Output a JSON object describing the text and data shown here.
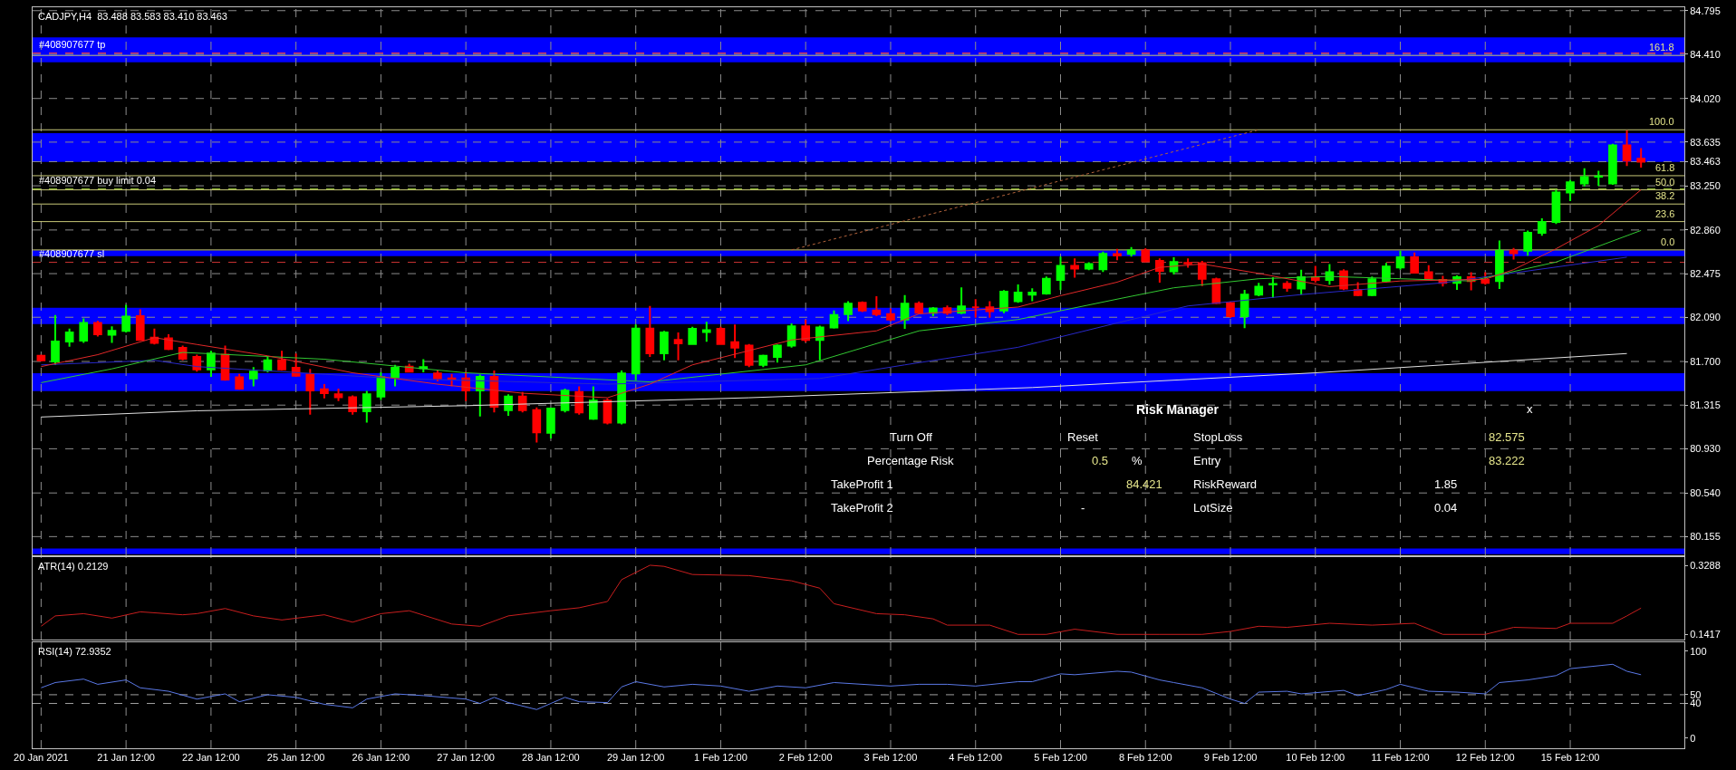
{
  "chart_data": [
    {
      "type": "candlestick",
      "title": "CADJPY,H4  83.488 83.583 83.410 83.463",
      "categories": [
        null,
        null,
        null,
        null,
        null,
        null,
        null,
        null,
        null,
        null,
        null,
        null,
        null,
        null,
        null,
        null,
        null,
        null,
        null,
        null,
        null,
        null,
        null,
        null,
        null,
        null,
        null,
        null,
        null,
        null,
        null,
        null,
        null,
        null,
        null,
        null,
        null,
        null,
        null,
        null,
        null,
        null,
        null,
        null,
        null,
        null,
        null,
        null,
        null,
        null,
        null,
        null,
        null,
        null,
        null,
        null,
        null,
        null,
        null,
        null,
        null,
        null,
        null,
        null,
        null,
        null,
        null,
        null,
        null,
        null,
        null,
        null,
        null,
        null,
        null,
        null,
        null,
        null,
        null,
        null,
        null,
        null,
        null,
        null,
        null,
        null,
        null,
        null,
        null,
        null,
        null,
        null,
        null,
        null,
        null,
        null,
        null,
        null,
        null,
        null,
        null,
        null,
        null,
        null,
        null,
        null,
        null,
        null,
        null,
        null,
        null,
        null,
        null,
        null
      ],
      "ohlc": [
        [
          81.75,
          81.76,
          81.7,
          81.71
        ],
        [
          81.7,
          82.11,
          81.67,
          81.876
        ],
        [
          81.876,
          81.99,
          81.83,
          81.955
        ],
        [
          81.885,
          82.08,
          81.865,
          82.04
        ],
        [
          82.04,
          82.06,
          81.92,
          81.94
        ],
        [
          81.935,
          82.01,
          81.865,
          81.97
        ],
        [
          81.97,
          82.2,
          81.955,
          82.095
        ],
        [
          82.1,
          82.16,
          81.885,
          81.89
        ],
        [
          81.91,
          81.99,
          81.85,
          81.865
        ],
        [
          81.905,
          81.94,
          81.8,
          81.81
        ],
        [
          81.82,
          81.84,
          81.71,
          81.725
        ],
        [
          81.74,
          81.76,
          81.61,
          81.63
        ],
        [
          81.63,
          81.795,
          81.565,
          81.77
        ],
        [
          81.76,
          81.84,
          81.53,
          81.54
        ],
        [
          81.56,
          81.59,
          81.45,
          81.46
        ],
        [
          81.55,
          81.65,
          81.48,
          81.61
        ],
        [
          81.62,
          81.74,
          81.605,
          81.71
        ],
        [
          81.71,
          81.795,
          81.62,
          81.63
        ],
        [
          81.645,
          81.77,
          81.565,
          81.575
        ],
        [
          81.585,
          81.635,
          81.23,
          81.445
        ],
        [
          81.455,
          81.5,
          81.375,
          81.42
        ],
        [
          81.41,
          81.46,
          81.35,
          81.385
        ],
        [
          81.385,
          81.4,
          81.23,
          81.26
        ],
        [
          81.26,
          81.44,
          81.16,
          81.41
        ],
        [
          81.39,
          81.605,
          81.36,
          81.56
        ],
        [
          81.56,
          81.67,
          81.48,
          81.645
        ],
        [
          81.655,
          81.68,
          81.605,
          81.61
        ],
        [
          81.64,
          81.72,
          81.605,
          81.65
        ],
        [
          81.595,
          81.62,
          81.525,
          81.55
        ],
        [
          81.55,
          81.59,
          81.48,
          81.545
        ],
        [
          81.55,
          81.61,
          81.35,
          81.445
        ],
        [
          81.445,
          81.585,
          81.215,
          81.565
        ],
        [
          81.565,
          81.62,
          81.25,
          81.3
        ],
        [
          81.27,
          81.41,
          81.22,
          81.39
        ],
        [
          81.39,
          81.43,
          81.25,
          81.27
        ],
        [
          81.27,
          81.295,
          80.985,
          81.075
        ],
        [
          81.07,
          81.29,
          81.02,
          81.285
        ],
        [
          81.27,
          81.46,
          81.25,
          81.443
        ],
        [
          81.43,
          81.48,
          81.23,
          81.25
        ],
        [
          81.195,
          81.48,
          81.185,
          81.355
        ],
        [
          81.355,
          81.375,
          81.145,
          81.16
        ],
        [
          81.16,
          81.62,
          81.145,
          81.595
        ],
        [
          81.595,
          82.025,
          81.535,
          81.99
        ],
        [
          81.99,
          82.19,
          81.74,
          81.773
        ],
        [
          81.773,
          81.97,
          81.71,
          81.955
        ],
        [
          81.89,
          81.955,
          81.71,
          81.86
        ],
        [
          81.855,
          82.005,
          81.85,
          81.987
        ],
        [
          81.96,
          82.05,
          81.875,
          81.975
        ],
        [
          81.987,
          82.005,
          81.85,
          81.855
        ],
        [
          81.87,
          82.025,
          81.73,
          81.823
        ],
        [
          81.84,
          81.855,
          81.65,
          81.67
        ],
        [
          81.67,
          81.76,
          81.65,
          81.75
        ],
        [
          81.74,
          81.85,
          81.69,
          81.84
        ],
        [
          81.84,
          82.035,
          81.823,
          82.01
        ],
        [
          82.01,
          82.07,
          81.87,
          81.89
        ],
        [
          81.89,
          82.015,
          81.71,
          82.0
        ],
        [
          82.0,
          82.15,
          81.99,
          82.11
        ],
        [
          82.117,
          82.232,
          82.055,
          82.21
        ],
        [
          82.217,
          82.23,
          82.135,
          82.15
        ],
        [
          82.15,
          82.275,
          82.1,
          82.118
        ],
        [
          82.118,
          82.167,
          82.055,
          82.07
        ],
        [
          82.07,
          82.285,
          81.987,
          82.21
        ],
        [
          82.21,
          82.23,
          82.12,
          82.13
        ],
        [
          82.13,
          82.18,
          82.1,
          82.167
        ],
        [
          82.17,
          82.193,
          82.11,
          82.13
        ],
        [
          82.13,
          82.354,
          82.118,
          82.185
        ],
        [
          82.177,
          82.25,
          82.086,
          82.177
        ],
        [
          82.177,
          82.232,
          82.086,
          82.143
        ],
        [
          82.15,
          82.33,
          82.125,
          82.315
        ],
        [
          82.232,
          82.38,
          82.217,
          82.307
        ],
        [
          82.29,
          82.346,
          82.232,
          82.307
        ],
        [
          82.3,
          82.45,
          82.29,
          82.43
        ],
        [
          82.42,
          82.625,
          82.33,
          82.544
        ],
        [
          82.544,
          82.61,
          82.44,
          82.52
        ],
        [
          82.52,
          82.575,
          82.505,
          82.56
        ],
        [
          82.513,
          82.67,
          82.49,
          82.65
        ],
        [
          82.648,
          82.694,
          82.593,
          82.636
        ],
        [
          82.65,
          82.71,
          82.625,
          82.68
        ],
        [
          82.68,
          82.7,
          82.575,
          82.587
        ],
        [
          82.587,
          82.61,
          82.395,
          82.5
        ],
        [
          82.495,
          82.62,
          82.467,
          82.577
        ],
        [
          82.57,
          82.61,
          82.527,
          82.565
        ],
        [
          82.567,
          82.587,
          82.365,
          82.43
        ],
        [
          82.425,
          82.44,
          82.205,
          82.215
        ],
        [
          82.215,
          82.228,
          82.086,
          82.1
        ],
        [
          82.1,
          82.332,
          81.994,
          82.29
        ],
        [
          82.29,
          82.394,
          82.275,
          82.36
        ],
        [
          82.38,
          82.443,
          82.26,
          82.384
        ],
        [
          82.386,
          82.41,
          82.316,
          82.35
        ],
        [
          82.343,
          82.51,
          82.29,
          82.443
        ],
        [
          82.443,
          82.544,
          82.395,
          82.42
        ],
        [
          82.42,
          82.56,
          82.377,
          82.487
        ],
        [
          82.495,
          82.513,
          82.33,
          82.343
        ],
        [
          82.332,
          82.4,
          82.275,
          82.285
        ],
        [
          82.285,
          82.45,
          82.275,
          82.426
        ],
        [
          82.41,
          82.57,
          82.395,
          82.537
        ],
        [
          82.53,
          82.678,
          82.51,
          82.62
        ],
        [
          82.62,
          82.662,
          82.477,
          82.483
        ],
        [
          82.487,
          82.55,
          82.418,
          82.43
        ],
        [
          82.42,
          82.455,
          82.362,
          82.394
        ],
        [
          82.394,
          82.46,
          82.332,
          82.443
        ],
        [
          82.443,
          82.487,
          82.327,
          82.41
        ],
        [
          82.42,
          82.487,
          82.377,
          82.394
        ],
        [
          82.41,
          82.768,
          82.34,
          82.678
        ],
        [
          82.678,
          82.702,
          82.6,
          82.655
        ],
        [
          82.678,
          82.856,
          82.634,
          82.836
        ],
        [
          82.836,
          82.962,
          82.81,
          82.93
        ],
        [
          82.93,
          83.215,
          82.912,
          83.19
        ],
        [
          83.19,
          83.3,
          83.114,
          83.28
        ],
        [
          83.271,
          83.405,
          83.245,
          83.327
        ],
        [
          83.33,
          83.383,
          83.248,
          83.332
        ],
        [
          83.271,
          83.62,
          83.258,
          83.606
        ],
        [
          83.606,
          83.741,
          83.425,
          83.472
        ],
        [
          83.488,
          83.583,
          83.41,
          83.463
        ]
      ],
      "colors": [
        "#ff0000",
        "#00ff00",
        "#00ff00",
        "#00ff00",
        "#ff0000",
        "#00ff00",
        "#00ff00",
        "#ff0000",
        "#ff0000",
        "#ff0000",
        "#ff0000",
        "#ff0000",
        "#00ff00",
        "#ff0000",
        "#ff0000",
        "#00ff00",
        "#00ff00",
        "#ff0000",
        "#ff0000",
        "#ff0000",
        "#ff0000",
        "#ff0000",
        "#ff0000",
        "#00ff00",
        "#00ff00",
        "#00ff00",
        "#ff0000",
        "#00ff00",
        "#ff0000",
        "#ff0000",
        "#ff0000",
        "#00ff00",
        "#ff0000",
        "#00ff00",
        "#ff0000",
        "#ff0000",
        "#00ff00",
        "#00ff00",
        "#ff0000",
        "#00ff00",
        "#ff0000",
        "#00ff00",
        "#00ff00",
        "#ff0000",
        "#00ff00",
        "#ff0000",
        "#00ff00",
        "#00ff00",
        "#ff0000",
        "#ff0000",
        "#ff0000",
        "#00ff00",
        "#00ff00",
        "#00ff00",
        "#ff0000",
        "#00ff00",
        "#00ff00",
        "#00ff00",
        "#ff0000",
        "#ff0000",
        "#ff0000",
        "#00ff00",
        "#ff0000",
        "#00ff00",
        "#ff0000",
        "#00ff00",
        "#ff0000",
        "#ff0000",
        "#00ff00",
        "#00ff00",
        "#00ff00",
        "#00ff00",
        "#00ff00",
        "#ff0000",
        "#00ff00",
        "#00ff00",
        "#ff0000",
        "#00ff00",
        "#ff0000",
        "#ff0000",
        "#00ff00",
        "#ff0000",
        "#ff0000",
        "#ff0000",
        "#ff0000",
        "#00ff00",
        "#00ff00",
        "#00ff00",
        "#ff0000",
        "#00ff00",
        "#ff0000",
        "#00ff00",
        "#ff0000",
        "#ff0000",
        "#00ff00",
        "#00ff00",
        "#00ff00",
        "#ff0000",
        "#ff0000",
        "#ff0000",
        "#00ff00",
        "#ff0000",
        "#ff0000",
        "#00ff00",
        "#ff0000",
        "#00ff00",
        "#00ff00",
        "#00ff00",
        "#00ff00",
        "#00ff00",
        "#00ff00",
        "#00ff00",
        "#ff0000",
        "#ff0000"
      ],
      "series": [
        {
          "type": "line",
          "color": "#e0e0e0",
          "values": [
            81.21,
            null,
            null,
            null,
            null,
            null,
            null,
            null,
            null,
            null,
            null,
            81.265,
            null,
            null,
            null,
            null,
            null,
            null,
            null,
            null,
            null,
            null,
            null,
            null,
            null,
            null,
            null,
            null,
            null,
            null,
            81.31,
            null,
            null,
            null,
            null,
            null,
            null,
            null,
            null,
            null,
            null,
            null,
            null,
            null,
            null,
            null,
            null,
            null,
            null,
            null,
            81.38,
            null,
            null,
            null,
            null,
            null,
            null,
            null,
            null,
            null,
            null,
            null,
            null,
            null,
            null,
            null,
            null,
            null,
            null,
            null,
            81.47,
            null,
            null,
            null,
            null,
            null,
            null,
            null,
            null,
            null,
            null,
            null,
            null,
            null,
            null,
            null,
            null,
            null,
            null,
            null,
            81.6,
            null,
            null,
            null,
            null,
            null,
            null,
            null,
            null,
            null,
            null,
            null,
            null,
            null,
            null,
            null,
            null,
            null,
            null,
            null,
            null,
            null,
            81.77,
            null
          ]
        },
        {
          "type": "line",
          "color": "#2828c8",
          "values": [
            81.67,
            null,
            null,
            null,
            null,
            null,
            null,
            null,
            81.71,
            null,
            null,
            81.655,
            null,
            null,
            null,
            null,
            null,
            null,
            null,
            null,
            null,
            null,
            null,
            null,
            null,
            81.55,
            null,
            null,
            null,
            null,
            null,
            null,
            null,
            null,
            null,
            null,
            null,
            null,
            null,
            null,
            81.5,
            null,
            null,
            null,
            null,
            null,
            null,
            null,
            null,
            null,
            null,
            null,
            null,
            null,
            null,
            81.55,
            null,
            null,
            null,
            null,
            null,
            81.67,
            null,
            null,
            null,
            null,
            null,
            null,
            null,
            81.825,
            null,
            null,
            null,
            null,
            null,
            null,
            82.04,
            null,
            null,
            null,
            null,
            82.19,
            null,
            null,
            null,
            null,
            null,
            null,
            null,
            82.29,
            null,
            null,
            null,
            null,
            null,
            null,
            null,
            null,
            null,
            82.394,
            null,
            null,
            null,
            null,
            null,
            null,
            null,
            null,
            null,
            null,
            null,
            null,
            82.62,
            null
          ]
        },
        {
          "type": "line",
          "color": "#32c832",
          "values": [
            81.513,
            null,
            null,
            null,
            null,
            81.635,
            null,
            null,
            null,
            null,
            81.78,
            null,
            null,
            null,
            null,
            null,
            null,
            null,
            null,
            null,
            81.72,
            null,
            null,
            null,
            null,
            null,
            null,
            null,
            null,
            null,
            81.6,
            null,
            null,
            null,
            null,
            null,
            null,
            null,
            null,
            null,
            null,
            null,
            null,
            81.52,
            null,
            null,
            null,
            null,
            null,
            null,
            null,
            null,
            null,
            null,
            81.67,
            null,
            null,
            null,
            null,
            null,
            null,
            null,
            81.97,
            null,
            null,
            null,
            null,
            null,
            null,
            82.07,
            null,
            null,
            null,
            null,
            null,
            null,
            82.25,
            null,
            null,
            null,
            82.35,
            null,
            null,
            null,
            null,
            null,
            82.43,
            null,
            null,
            null,
            null,
            82.45,
            null,
            null,
            null,
            null,
            null,
            null,
            null,
            null,
            null,
            82.41,
            null,
            null,
            null,
            null,
            null,
            82.577,
            null,
            null,
            null,
            null,
            null,
            82.856
          ]
        },
        {
          "type": "line",
          "color": "#e02828",
          "values": [
            81.655,
            null,
            null,
            null,
            81.76,
            null,
            null,
            null,
            81.91,
            null,
            null,
            81.85,
            null,
            null,
            null,
            null,
            81.75,
            null,
            null,
            null,
            null,
            null,
            81.6,
            null,
            null,
            null,
            null,
            null,
            81.5,
            null,
            null,
            null,
            null,
            null,
            81.42,
            null,
            null,
            null,
            null,
            null,
            81.38,
            null,
            null,
            81.5,
            null,
            null,
            81.67,
            null,
            null,
            null,
            null,
            null,
            null,
            81.89,
            null,
            null,
            null,
            null,
            null,
            81.97,
            null,
            null,
            82.12,
            null,
            null,
            null,
            null,
            null,
            null,
            82.18,
            null,
            null,
            82.28,
            null,
            null,
            null,
            82.4,
            null,
            null,
            82.53,
            null,
            null,
            82.56,
            null,
            null,
            null,
            82.477,
            null,
            null,
            null,
            null,
            82.36,
            null,
            null,
            null,
            null,
            82.41,
            null,
            null,
            null,
            null,
            null,
            82.425,
            null,
            82.51,
            null,
            null,
            82.694,
            null,
            null,
            82.9,
            null,
            null,
            83.215
          ]
        },
        {
          "type": "line",
          "color": "#b4643c",
          "line_style": "dotted",
          "values": [
            null,
            null,
            null,
            null,
            null,
            null,
            null,
            null,
            null,
            null,
            null,
            null,
            null,
            null,
            null,
            null,
            null,
            null,
            null,
            null,
            null,
            null,
            null,
            null,
            null,
            null,
            null,
            null,
            null,
            null,
            null,
            null,
            null,
            null,
            null,
            null,
            null,
            null,
            null,
            null,
            null,
            null,
            null,
            null,
            null,
            null,
            null,
            null,
            null,
            null,
            null,
            null,
            null,
            82.684,
            null,
            null,
            null,
            null,
            null,
            null,
            null,
            null,
            null,
            null,
            null,
            null,
            null,
            null,
            null,
            null,
            null,
            null,
            null,
            null,
            null,
            null,
            null,
            null,
            null,
            null,
            null,
            null,
            null,
            null,
            null,
            null,
            83.744,
            null,
            null,
            null,
            null,
            null,
            null,
            null,
            null,
            null,
            null,
            null,
            null,
            null,
            null,
            null,
            null,
            null,
            null,
            null,
            null,
            null,
            null,
            null,
            null,
            null,
            null,
            null
          ]
        }
      ],
      "bands": [
        {
          "axis": "y",
          "from": 84.34,
          "to": 84.56,
          "color": "#0000ff"
        },
        {
          "axis": "y",
          "from": 83.46,
          "to": 83.715,
          "color": "#0000ff"
        },
        {
          "axis": "y",
          "from": 82.63,
          "to": 82.68,
          "color": "#0000ff"
        },
        {
          "axis": "y",
          "from": 82.03,
          "to": 82.173,
          "color": "#0000ff"
        },
        {
          "axis": "y",
          "from": 81.438,
          "to": 81.597,
          "color": "#0000ff"
        },
        {
          "axis": "y",
          "from": 80.0,
          "to": 80.05,
          "color": "#0000ff"
        }
      ],
      "ref_lines": [
        {
          "axis": "y",
          "value": 84.421,
          "label": "#408907677 tp",
          "color": "#ff3c3c",
          "line_style": "dashed"
        },
        {
          "axis": "y",
          "value": 83.222,
          "label": "#408907677 buy limit 0.04",
          "color": "#9acd32",
          "line_style": "dashed"
        },
        {
          "axis": "y",
          "value": 82.575,
          "label": "#408907677 sl",
          "color": "#c83232",
          "line_style": "dashed"
        },
        {
          "axis": "y",
          "value": 84.4,
          "color": "#c8c878",
          "line_style": "solid"
        },
        {
          "axis": "y",
          "value": 83.744,
          "color": "#c8c878",
          "line_style": "solid"
        },
        {
          "axis": "y",
          "value": 83.339,
          "color": "#c8c878",
          "line_style": "solid"
        },
        {
          "axis": "y",
          "value": 83.214,
          "color": "#c8c878",
          "line_style": "solid"
        },
        {
          "axis": "y",
          "value": 83.089,
          "color": "#c8c878",
          "line_style": "solid"
        },
        {
          "axis": "y",
          "value": 82.934,
          "color": "#c8c878",
          "line_style": "solid"
        },
        {
          "axis": "y",
          "value": 82.684,
          "color": "#c8c878",
          "line_style": "solid"
        }
      ],
      "annotations": [
        {
          "text": "161.8",
          "y": 84.4
        },
        {
          "text": "100.0",
          "y": 83.744
        },
        {
          "text": "61.8",
          "y": 83.339
        },
        {
          "text": "50.0",
          "y": 83.214
        },
        {
          "text": "38.2",
          "y": 83.089
        },
        {
          "text": "23.6",
          "y": 82.934
        },
        {
          "text": "0.0",
          "y": 82.684
        }
      ],
      "ylim": [
        79.99,
        84.825
      ],
      "yticks": [
        {
          "value": 84.795,
          "label": "84.795"
        },
        {
          "value": 84.41,
          "label": "84.410"
        },
        {
          "value": 84.02,
          "label": "84.020"
        },
        {
          "value": 83.635,
          "label": "83.635"
        },
        {
          "value": 83.463,
          "label": "83.463"
        },
        {
          "value": 83.25,
          "label": "83.250"
        },
        {
          "value": 82.86,
          "label": "82.860"
        },
        {
          "value": 82.475,
          "label": "82.475"
        },
        {
          "value": 82.09,
          "label": "82.090"
        },
        {
          "value": 81.7,
          "label": "81.700"
        },
        {
          "value": 81.315,
          "label": "81.315"
        },
        {
          "value": 80.93,
          "label": "80.930"
        },
        {
          "value": 80.54,
          "label": "80.540"
        },
        {
          "value": 80.155,
          "label": "80.155"
        }
      ],
      "tick_labels": "y",
      "grid": true
    },
    {
      "type": "line",
      "title": "ATR(14) 0.2129",
      "color": "#c81e1e",
      "categories": [
        null,
        null,
        null,
        null,
        null,
        null,
        null,
        null,
        null,
        null,
        null,
        null,
        null,
        null,
        null,
        null,
        null,
        null,
        null,
        null,
        null,
        null,
        null,
        null,
        null,
        null,
        null,
        null,
        null,
        null,
        null,
        null,
        null,
        null,
        null,
        null,
        null,
        null,
        null,
        null,
        null,
        null,
        null,
        null,
        null,
        null,
        null,
        null,
        null,
        null,
        null,
        null,
        null,
        null,
        null,
        null,
        null,
        null,
        null,
        null,
        null,
        null,
        null,
        null,
        null,
        null,
        null,
        null,
        null,
        null,
        null,
        null,
        null,
        null,
        null,
        null,
        null,
        null,
        null,
        null,
        null,
        null,
        null,
        null,
        null,
        null,
        null,
        null,
        null,
        null,
        null,
        null,
        null,
        null,
        null,
        null,
        null,
        null,
        null,
        null,
        null,
        null,
        null,
        null,
        null,
        null,
        null,
        null,
        null,
        null,
        null,
        null,
        null,
        null
      ],
      "values": [
        0.164,
        0.192,
        null,
        0.198,
        null,
        0.186,
        null,
        0.203,
        null,
        null,
        0.195,
        0.198,
        null,
        0.212,
        null,
        0.192,
        null,
        0.181,
        null,
        null,
        0.195,
        null,
        0.175,
        null,
        0.198,
        null,
        0.206,
        null,
        null,
        0.17,
        null,
        0.164,
        null,
        0.192,
        null,
        null,
        0.206,
        null,
        0.214,
        null,
        0.231,
        0.29,
        null,
        0.329,
        0.326,
        null,
        0.304,
        null,
        null,
        null,
        0.301,
        null,
        null,
        0.287,
        null,
        0.267,
        0.225,
        null,
        null,
        0.198,
        null,
        0.195,
        null,
        0.184,
        0.167,
        null,
        null,
        0.167,
        null,
        0.142,
        null,
        0.142,
        null,
        0.156,
        null,
        null,
        0.142,
        null,
        null,
        0.142,
        null,
        null,
        0.142,
        null,
        0.15,
        null,
        0.164,
        null,
        0.161,
        null,
        null,
        0.172,
        null,
        null,
        0.167,
        null,
        null,
        0.172,
        null,
        0.142,
        null,
        null,
        0.142,
        null,
        0.161,
        null,
        null,
        0.158,
        0.172,
        null,
        null,
        0.172,
        0.192,
        0.213
      ],
      "ylim": [
        0.128,
        0.351
      ],
      "yticks": [
        0.3288,
        0.1417
      ],
      "tick_labels": "y",
      "grid": "x"
    },
    {
      "type": "line",
      "title": "RSI(14) 72.9352",
      "color": "#5a78e6",
      "categories": [
        "20 Jan 2021",
        null,
        null,
        null,
        null,
        null,
        "21 Jan 12:00",
        null,
        null,
        null,
        null,
        null,
        "22 Jan 12:00",
        null,
        null,
        null,
        null,
        null,
        "25 Jan 12:00",
        null,
        null,
        null,
        null,
        null,
        "26 Jan 12:00",
        null,
        null,
        null,
        null,
        null,
        "27 Jan 12:00",
        null,
        null,
        null,
        null,
        null,
        "28 Jan 12:00",
        null,
        null,
        null,
        null,
        null,
        "29 Jan 12:00",
        null,
        null,
        null,
        null,
        null,
        "1 Feb 12:00",
        null,
        null,
        null,
        null,
        null,
        "2 Feb 12:00",
        null,
        null,
        null,
        null,
        null,
        "3 Feb 12:00",
        null,
        null,
        null,
        null,
        null,
        "4 Feb 12:00",
        null,
        null,
        null,
        null,
        null,
        "5 Feb 12:00",
        null,
        null,
        null,
        null,
        null,
        "8 Feb 12:00",
        null,
        null,
        null,
        null,
        null,
        "9 Feb 12:00",
        null,
        null,
        null,
        null,
        null,
        "10 Feb 12:00",
        null,
        null,
        null,
        null,
        null,
        "11 Feb 12:00",
        null,
        null,
        null,
        null,
        null,
        "12 Feb 12:00",
        null,
        null,
        null,
        null,
        null,
        "15 Feb 12:00",
        null,
        null,
        null,
        null,
        null
      ],
      "values": [
        58,
        64,
        null,
        68,
        62,
        null,
        67,
        58,
        null,
        54,
        null,
        45,
        null,
        51,
        42,
        null,
        50,
        null,
        47,
        null,
        39,
        null,
        35,
        45,
        null,
        51,
        null,
        49,
        null,
        null,
        45,
        40,
        47,
        41,
        null,
        33,
        null,
        47,
        42,
        null,
        41,
        59,
        65,
        null,
        59,
        null,
        62,
        null,
        60,
        null,
        54,
        null,
        60,
        null,
        58,
        null,
        64,
        null,
        null,
        null,
        60,
        null,
        62,
        null,
        62,
        null,
        60,
        null,
        null,
        65,
        65,
        null,
        74,
        73,
        null,
        null,
        77,
        76,
        null,
        67,
        64,
        null,
        58,
        null,
        45,
        40,
        53,
        null,
        54,
        51,
        null,
        null,
        55,
        49,
        null,
        56,
        62,
        null,
        54,
        null,
        53,
        null,
        51,
        64,
        null,
        67,
        null,
        72,
        80,
        null,
        null,
        85,
        77,
        73
      ],
      "ref_lines": [
        {
          "axis": "y",
          "value": 50,
          "color": "#a0a0a0",
          "line_style": "dashed"
        },
        {
          "axis": "y",
          "value": 40,
          "color": "#a0a0a0",
          "line_style": "dashed"
        }
      ],
      "ylim": [
        -11.5,
        110.3
      ],
      "yticks": [
        100,
        50,
        40,
        0
      ],
      "grid": "x"
    },
    {
      "type": "other",
      "title": "Risk Manager",
      "annotations": [
        "x",
        "Turn Off",
        "Reset",
        "Percentage Risk",
        "0.5",
        "%",
        "TakeProfit 1",
        "84.421",
        "TakeProfit 2",
        "-",
        "StopLoss",
        "82.575",
        "Entry",
        "83.222",
        "RiskReward",
        "1.85",
        "LotSize",
        "0.04"
      ]
    }
  ]
}
